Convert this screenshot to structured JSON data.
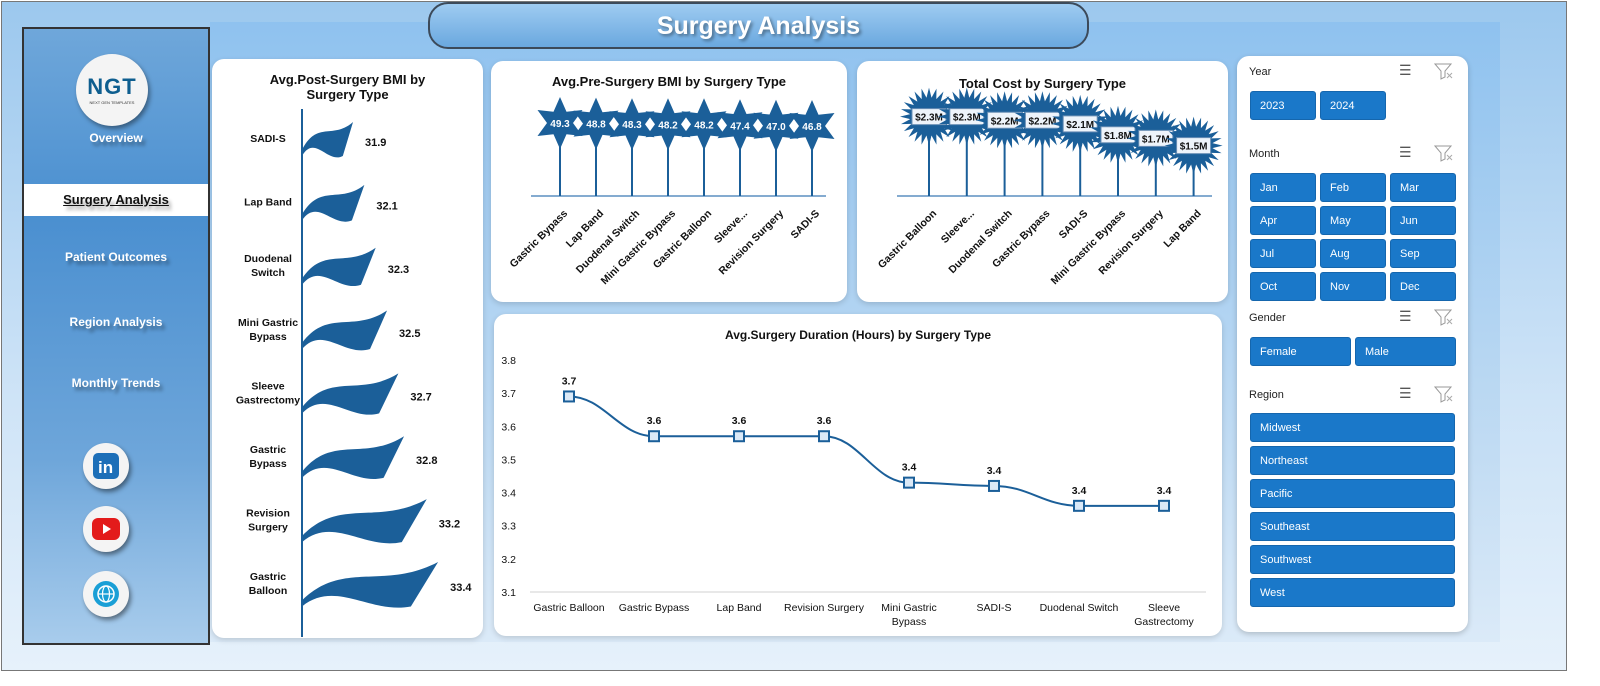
{
  "title": "Surgery Analysis",
  "sidebar": {
    "logo": "NGT",
    "logo_sub": "NEXT GEN TEMPLATES",
    "items": [
      {
        "label": "Overview"
      },
      {
        "label": "Surgery Analysis",
        "active": true
      },
      {
        "label": "Patient Outcomes"
      },
      {
        "label": "Region Analysis"
      },
      {
        "label": "Monthly Trends"
      }
    ],
    "social": [
      "linkedin-icon",
      "youtube-icon",
      "globe-icon"
    ]
  },
  "colors": {
    "bar": "#1b5f99",
    "button": "#1a78c9",
    "line": "#1b5f99"
  },
  "chart_data": [
    {
      "type": "bar",
      "orientation": "horizontal",
      "title": "Avg.Post-Surgery BMI by Surgery Type",
      "categories": [
        "SADI-S",
        "Lap Band",
        "Duodenal Switch",
        "Mini Gastric Bypass",
        "Sleeve Gastrectomy",
        "Gastric Bypass",
        "Revision Surgery",
        "Gastric Balloon"
      ],
      "values": [
        31.9,
        32.1,
        32.3,
        32.5,
        32.7,
        32.8,
        33.2,
        33.4
      ],
      "labels": [
        "31.9",
        "32.1",
        "32.3",
        "32.5",
        "32.7",
        "32.8",
        "33.2",
        "33.4"
      ]
    },
    {
      "type": "bar",
      "title": "Avg.Pre-Surgery  BMI by Surgery Type",
      "categories": [
        "Gastric Bypass",
        "Lap Band",
        "Duodenal Switch",
        "Mini Gastric Bypass",
        "Gastric Balloon",
        "Sleeve...",
        "Revision Surgery",
        "SADI-S"
      ],
      "values": [
        49.3,
        48.8,
        48.3,
        48.2,
        48.2,
        47.4,
        47.0,
        46.8
      ],
      "labels": [
        "49.3",
        "48.8",
        "48.3",
        "48.2",
        "48.2",
        "47.4",
        "47.0",
        "46.8"
      ]
    },
    {
      "type": "bar",
      "title": "Total Cost by Surgery Type",
      "categories": [
        "Gastric Balloon",
        "Sleeve...",
        "Duodenal Switch",
        "Gastric Bypass",
        "SADI-S",
        "Mini Gastric Bypass",
        "Revision Surgery",
        "Lap Band"
      ],
      "values": [
        2.3,
        2.3,
        2.2,
        2.2,
        2.1,
        1.8,
        1.7,
        1.5
      ],
      "labels": [
        "$2.3M",
        "$2.3M",
        "$2.2M",
        "$2.2M",
        "$2.1M",
        "$1.8M",
        "$1.7M",
        "$1.5M"
      ]
    },
    {
      "type": "line",
      "title": "Avg.Surgery Duration (Hours) by Surgery Type",
      "categories": [
        "Gastric Balloon",
        "Gastric Bypass",
        "Lap Band",
        "Revision Surgery",
        "Mini Gastric Bypass",
        "SADI-S",
        "Duodenal Switch",
        "Sleeve Gastrectomy"
      ],
      "values": [
        3.69,
        3.57,
        3.57,
        3.57,
        3.43,
        3.42,
        3.36,
        3.36
      ],
      "labels": [
        "3.7",
        "3.6",
        "3.6",
        "3.6",
        "3.4",
        "3.4",
        "3.4",
        "3.4"
      ],
      "ylim": [
        3.1,
        3.8
      ],
      "yticks": [
        "3.1",
        "3.2",
        "3.3",
        "3.4",
        "3.5",
        "3.6",
        "3.7",
        "3.8"
      ],
      "grid": false
    }
  ],
  "slicers": {
    "year": {
      "label": "Year",
      "options": [
        "2023",
        "2024"
      ]
    },
    "month": {
      "label": "Month",
      "options": [
        "Jan",
        "Feb",
        "Mar",
        "Apr",
        "May",
        "Jun",
        "Jul",
        "Aug",
        "Sep",
        "Oct",
        "Nov",
        "Dec"
      ]
    },
    "gender": {
      "label": "Gender",
      "options": [
        "Female",
        "Male"
      ]
    },
    "region": {
      "label": "Region",
      "options": [
        "Midwest",
        "Northeast",
        "Pacific",
        "Southeast",
        "Southwest",
        "West"
      ]
    }
  }
}
